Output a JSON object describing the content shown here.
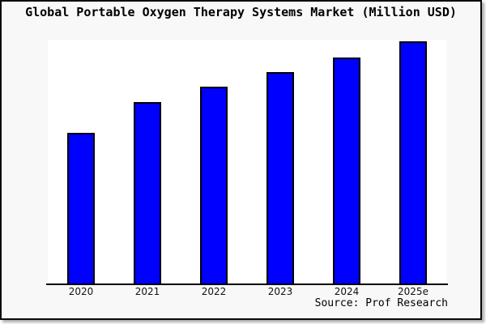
{
  "title": "Global Portable Oxygen Therapy Systems Market (Million USD)",
  "source": "Source: Prof Research",
  "colors": {
    "bar_fill": "#0000FF",
    "bar_edge": "#000000",
    "plot_background": "#FFFFFF",
    "canvas_background": "#F8F8F8",
    "frame_border": "#0A0A0A",
    "text": "#000000"
  },
  "chart_data": {
    "type": "bar",
    "categories": [
      "2020",
      "2021",
      "2022",
      "2023",
      "2024",
      "2025e"
    ],
    "values": [
      62.5,
      75.0,
      81.5,
      87.5,
      93.5,
      100.0
    ],
    "title": "Global Portable Oxygen Therapy Systems Market (Million USD)",
    "xlabel": "",
    "ylabel": "",
    "ylim": [
      0,
      100.7
    ],
    "grid": false,
    "legend": false,
    "y_axis_labels_visible": false,
    "note": "Chart shows no y-axis scale; values are relative estimates from bar heights with 2025e indexed to 100."
  }
}
